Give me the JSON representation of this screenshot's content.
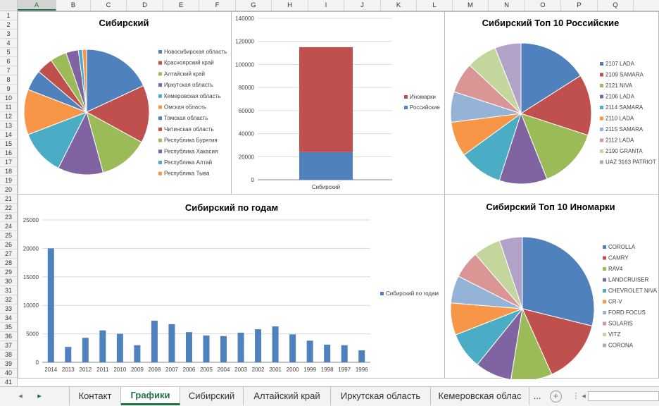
{
  "grid": {
    "columns": [
      "A",
      "B",
      "C",
      "D",
      "E",
      "F",
      "G",
      "H",
      "I",
      "J",
      "K",
      "L",
      "M",
      "N",
      "O",
      "P",
      "Q"
    ],
    "selected_column": "A",
    "rows": [
      "1",
      "2",
      "3",
      "4",
      "5",
      "6",
      "7",
      "8",
      "9",
      "10",
      "11",
      "12",
      "13",
      "14",
      "15",
      "16",
      "17",
      "18",
      "19",
      "20",
      "21",
      "22",
      "23",
      "24",
      "25",
      "26",
      "27",
      "28",
      "29",
      "30",
      "31",
      "32",
      "33",
      "34",
      "35",
      "36",
      "37",
      "38",
      "39",
      "40",
      "41"
    ]
  },
  "tabs": {
    "items": [
      "Контакт",
      "Графики",
      "Сибирский",
      "Алтайский край",
      "Иркутская область",
      "Кемеровская облас"
    ],
    "active_index": 1,
    "more": "...",
    "add_symbol": "+",
    "nav_prev": "◂",
    "nav_next": "▸",
    "more_menu": "⋮"
  },
  "charts": {
    "regions_pie": {
      "title": "Сибирский",
      "chart_data": {
        "type": "pie",
        "title": "Сибирский",
        "legend_position": "right",
        "labels": [
          "Новосибирская область",
          "Красноярский край",
          "Алтайский край",
          "Иркутская область",
          "Кемеровская область",
          "Омская область",
          "Томская область",
          "Читинская область",
          "Республика Бурятия",
          "Республика Хакасия",
          "Республика Алтай",
          "Республика Тыва"
        ],
        "values": [
          17,
          14,
          12,
          11,
          11,
          11,
          5,
          4,
          4,
          3,
          1,
          1
        ],
        "colors": [
          "#4f81bd",
          "#c0504d",
          "#9bbb59",
          "#8064a2",
          "#4bacc6",
          "#f79646",
          "#4f81bd",
          "#c0504d",
          "#9bbb59",
          "#8064a2",
          "#4bacc6",
          "#f79646"
        ]
      }
    },
    "stacked_bar": {
      "chart_data": {
        "type": "bar",
        "stacked": true,
        "categories": [
          "Сибирский"
        ],
        "series": [
          {
            "name": "Российские",
            "values": [
              24000
            ],
            "color": "#4f81bd"
          },
          {
            "name": "Иномарки",
            "values": [
              91000
            ],
            "color": "#c0504d"
          }
        ],
        "ylim": [
          0,
          140000
        ],
        "yticks": [
          "0",
          "20000",
          "40000",
          "60000",
          "80000",
          "100000",
          "120000",
          "140000"
        ],
        "grid": true,
        "legend_position": "right",
        "legend_order": [
          "Иномарки",
          "Российские"
        ]
      }
    },
    "russian_pie": {
      "title": "Сибирский Топ 10 Российские",
      "chart_data": {
        "type": "pie",
        "title": "Сибирский Топ 10 Российские",
        "legend_position": "right",
        "labels": [
          "2107 LADA",
          "2109 SAMARA",
          "2121 NIVA",
          "2106 LADA",
          "2114 SAMARA",
          "2110 LADA",
          "2115 SAMARA",
          "2112 LADA",
          "2190 GRANTA",
          "UAZ 3163 PATRIOT"
        ],
        "values": [
          16,
          14,
          14,
          11,
          10,
          8,
          7,
          7,
          7,
          6
        ],
        "colors": [
          "#4f81bd",
          "#c0504d",
          "#9bbb59",
          "#8064a2",
          "#4bacc6",
          "#f79646",
          "#95b3d7",
          "#d99694",
          "#c3d69b",
          "#b2a2c7"
        ]
      }
    },
    "years_bar": {
      "title": "Сибирский по годам",
      "chart_data": {
        "type": "bar",
        "title": "Сибирский по годам",
        "categories": [
          "2014",
          "2013",
          "2012",
          "2011",
          "2010",
          "2009",
          "2008",
          "2007",
          "2006",
          "2005",
          "2004",
          "2003",
          "2002",
          "2001",
          "2000",
          "1999",
          "1998",
          "1997",
          "1996"
        ],
        "series": [
          {
            "name": "Сибирский по годам",
            "values": [
              20000,
              2700,
              4300,
              5600,
              5000,
              3000,
              7300,
              6700,
              5300,
              4700,
              4600,
              5200,
              5800,
              6300,
              4900,
              3800,
              3100,
              3000,
              2100
            ],
            "color": "#4f81bd"
          }
        ],
        "ylim": [
          0,
          25000
        ],
        "yticks": [
          "0",
          "5000",
          "10000",
          "15000",
          "20000",
          "25000"
        ],
        "grid": true,
        "legend_position": "right"
      }
    },
    "foreign_pie": {
      "title": "Сибирский Топ 10 Иномарки",
      "chart_data": {
        "type": "pie",
        "title": "Сибирский Топ 10 Иномарки",
        "legend_position": "right",
        "labels": [
          "COROLLA",
          "CAMRY",
          "RAV4",
          "LANDCRUISER",
          "CHEVROLET NIVA",
          "CR-V",
          "FORD FOCUS",
          "SOLARIS",
          "VITZ",
          "CORONA"
        ],
        "values": [
          28,
          14,
          9,
          8,
          8,
          7,
          6,
          6,
          6,
          5
        ],
        "colors": [
          "#4f81bd",
          "#c0504d",
          "#9bbb59",
          "#8064a2",
          "#4bacc6",
          "#f79646",
          "#95b3d7",
          "#d99694",
          "#c3d69b",
          "#b2a2c7"
        ]
      }
    }
  }
}
